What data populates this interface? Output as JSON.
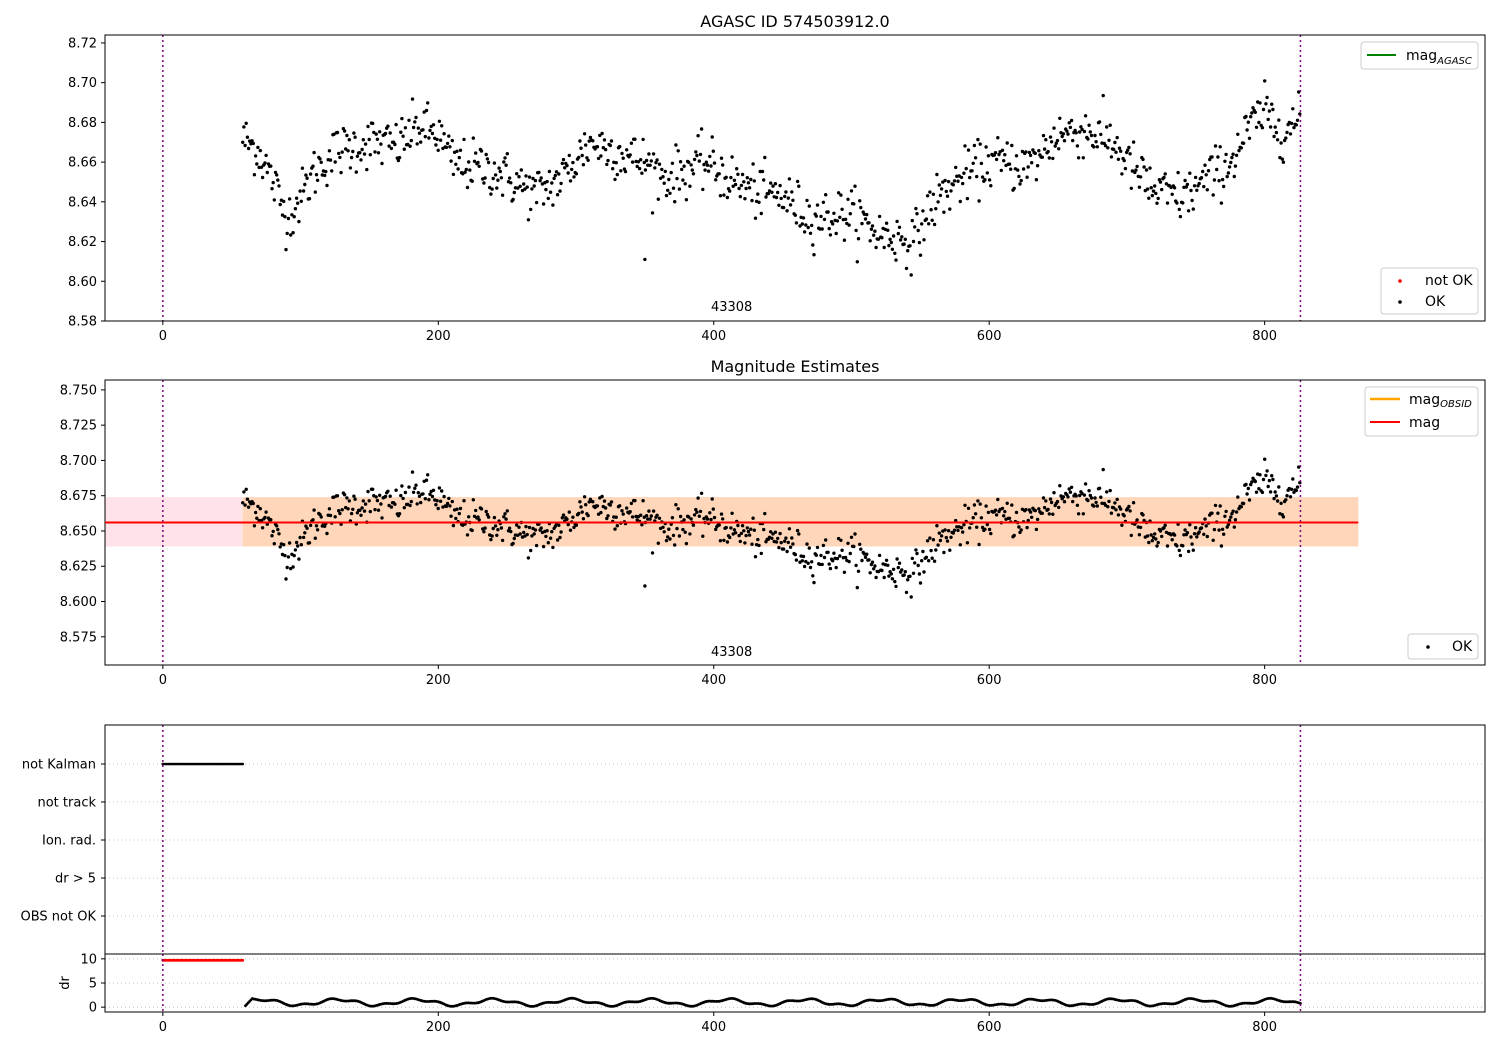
{
  "chart_data": [
    {
      "type": "scatter",
      "title": "AGASC ID 574503912.0",
      "xlim": [
        -42,
        960
      ],
      "ylim": [
        8.58,
        8.724
      ],
      "xticks": [
        0,
        200,
        400,
        600,
        800
      ],
      "yticks": [
        8.58,
        8.6,
        8.62,
        8.64,
        8.66,
        8.68,
        8.7,
        8.72
      ],
      "ytick_labels": [
        "8.58",
        "8.60",
        "8.62",
        "8.64",
        "8.66",
        "8.68",
        "8.70",
        "8.72"
      ],
      "obsid_label": "43308",
      "obsid_x": 413,
      "vlines": [
        0,
        826
      ],
      "legend_lines": [
        {
          "label": "mag",
          "sub": "AGASC",
          "color": "#008000"
        }
      ],
      "legend_points": [
        {
          "label": "not OK",
          "color": "#ff0000"
        },
        {
          "label": "OK",
          "color": "#000000"
        }
      ],
      "series": [
        {
          "name": "OK",
          "x_start": 58,
          "x_end": 826
        }
      ]
    },
    {
      "type": "scatter",
      "title": "Magnitude Estimates",
      "xlim": [
        -42,
        960
      ],
      "ylim": [
        8.555,
        8.757
      ],
      "xticks": [
        0,
        200,
        400,
        600,
        800
      ],
      "yticks": [
        8.575,
        8.6,
        8.625,
        8.65,
        8.675,
        8.7,
        8.725,
        8.75
      ],
      "ytick_labels": [
        "8.575",
        "8.600",
        "8.625",
        "8.650",
        "8.675",
        "8.700",
        "8.725",
        "8.750"
      ],
      "obsid_label": "43308",
      "obsid_x": 413,
      "vlines": [
        0,
        826
      ],
      "mag": 8.656,
      "mag_band": [
        8.639,
        8.674
      ],
      "band_x": [
        -42,
        868
      ],
      "legend_lines": [
        {
          "label": "mag",
          "sub": "OBSID",
          "color": "#ffa500"
        },
        {
          "label": "mag",
          "sub": "",
          "color": "#ff0000"
        }
      ],
      "legend_points": [
        {
          "label": "OK",
          "color": "#000000"
        }
      ],
      "series": [
        {
          "name": "OK",
          "x_start": 58,
          "x_end": 826
        }
      ]
    },
    {
      "type": "scatter",
      "xlim": [
        -42,
        960
      ],
      "categories": [
        "not Kalman",
        "not track",
        "Ion. rad.",
        "dr > 5",
        "OBS not OK"
      ],
      "flag_spans": [
        {
          "category": "not Kalman",
          "x_start": 0,
          "x_end": 58
        }
      ],
      "vlines": [
        0,
        826
      ]
    },
    {
      "type": "scatter",
      "xlim": [
        -42,
        960
      ],
      "ylim": [
        -1,
        11
      ],
      "ylabel": "dr",
      "xticks": [
        0,
        200,
        400,
        600,
        800
      ],
      "yticks": [
        0,
        5,
        10
      ],
      "clipped": {
        "x_start": 0,
        "x_end": 58,
        "y": 9.7
      },
      "series": [
        {
          "name": "dr",
          "x_start": 60,
          "x_end": 826
        }
      ],
      "vlines": [
        0,
        826
      ]
    }
  ]
}
